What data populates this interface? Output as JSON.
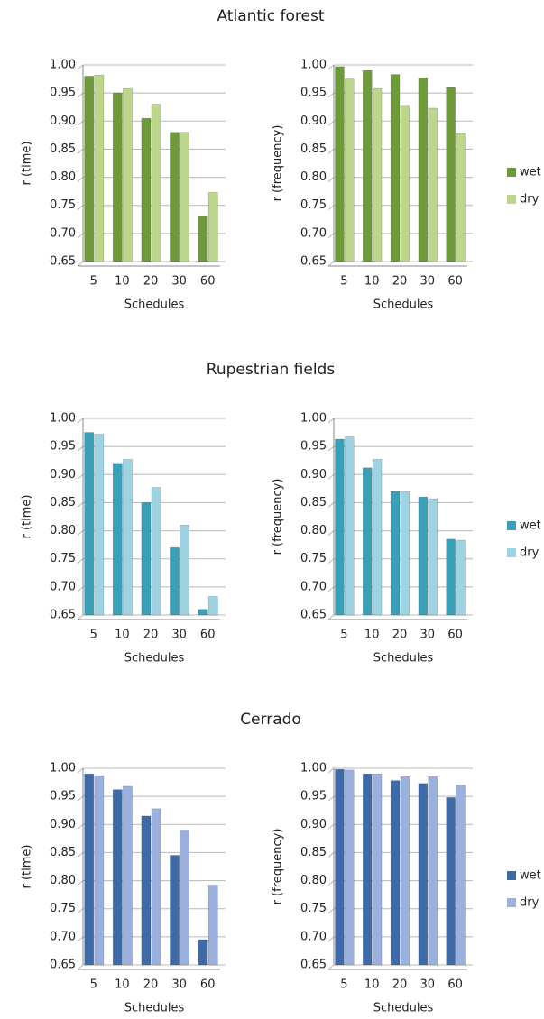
{
  "chart_data": [
    {
      "type": "bar",
      "title": "Atlantic forest",
      "ylabel": "r (time)",
      "xlabel": "Schedules",
      "categories": [
        "5",
        "10",
        "20",
        "30",
        "60"
      ],
      "series": [
        {
          "color": "#6f9a3a",
          "values": [
            0.98,
            0.95,
            0.905,
            0.88,
            0.73
          ]
        },
        {
          "color": "#bcd78c",
          "values": [
            0.982,
            0.958,
            0.93,
            0.88,
            0.773
          ]
        }
      ],
      "ylim": [
        0.65,
        1.0
      ],
      "grid": true,
      "yticks": [
        {
          "value": 0.65,
          "label": "0.65"
        },
        {
          "value": 0.7,
          "label": "0.70"
        },
        {
          "value": 0.75,
          "label": "0.75"
        },
        {
          "value": 0.8,
          "label": "0.80"
        },
        {
          "value": 0.85,
          "label": "0.85"
        },
        {
          "value": 0.9,
          "label": "0.90"
        },
        {
          "value": 0.95,
          "label": "0.95"
        },
        {
          "value": 1.0,
          "label": "1.00"
        }
      ]
    },
    {
      "type": "bar",
      "ylabel": "r (frequency)",
      "xlabel": "Schedules",
      "legend": "right",
      "categories": [
        "5",
        "10",
        "20",
        "30",
        "60"
      ],
      "series": [
        {
          "name": "wet",
          "color": "#6f9a3a",
          "values": [
            0.997,
            0.99,
            0.983,
            0.977,
            0.96
          ]
        },
        {
          "name": "dry",
          "color": "#bcd78c",
          "values": [
            0.975,
            0.958,
            0.928,
            0.923,
            0.878
          ]
        }
      ],
      "ylim": [
        0.65,
        1.0
      ],
      "grid": true,
      "yticks": [
        {
          "value": 0.65,
          "label": "0.65"
        },
        {
          "value": 0.7,
          "label": "0.70"
        },
        {
          "value": 0.75,
          "label": "0.75"
        },
        {
          "value": 0.8,
          "label": "0.80"
        },
        {
          "value": 0.85,
          "label": "0.85"
        },
        {
          "value": 0.9,
          "label": "0.90"
        },
        {
          "value": 0.95,
          "label": "0.95"
        },
        {
          "value": 1.0,
          "label": "1.00"
        }
      ]
    },
    {
      "type": "bar",
      "title": "Rupestrian fields",
      "ylabel": "r (time)",
      "xlabel": "Schedules",
      "categories": [
        "5",
        "10",
        "20",
        "30",
        "60"
      ],
      "series": [
        {
          "color": "#3aa0b8",
          "values": [
            0.975,
            0.92,
            0.85,
            0.77,
            0.66
          ]
        },
        {
          "color": "#9ed3e4",
          "values": [
            0.972,
            0.927,
            0.877,
            0.81,
            0.683
          ]
        }
      ],
      "ylim": [
        0.65,
        1.0
      ],
      "grid": true,
      "yticks": [
        {
          "value": 0.65,
          "label": "0.65"
        },
        {
          "value": 0.7,
          "label": "0.70"
        },
        {
          "value": 0.75,
          "label": "0.75"
        },
        {
          "value": 0.8,
          "label": "0.80"
        },
        {
          "value": 0.85,
          "label": "0.85"
        },
        {
          "value": 0.9,
          "label": "0.90"
        },
        {
          "value": 0.95,
          "label": "0.95"
        },
        {
          "value": 1.0,
          "label": "1.00"
        }
      ]
    },
    {
      "type": "bar",
      "ylabel": "r (frequency)",
      "xlabel": "Schedules",
      "legend": "right",
      "categories": [
        "5",
        "10",
        "20",
        "30",
        "60"
      ],
      "series": [
        {
          "name": "wet",
          "color": "#3aa0b8",
          "values": [
            0.963,
            0.912,
            0.87,
            0.86,
            0.785
          ]
        },
        {
          "name": "dry",
          "color": "#9ed3e4",
          "values": [
            0.967,
            0.927,
            0.87,
            0.857,
            0.783
          ]
        }
      ],
      "ylim": [
        0.65,
        1.0
      ],
      "grid": true,
      "yticks": [
        {
          "value": 0.65,
          "label": "0.65"
        },
        {
          "value": 0.7,
          "label": "0.70"
        },
        {
          "value": 0.75,
          "label": "0.75"
        },
        {
          "value": 0.8,
          "label": "0.80"
        },
        {
          "value": 0.85,
          "label": "0.85"
        },
        {
          "value": 0.9,
          "label": "0.90"
        },
        {
          "value": 0.95,
          "label": "0.95"
        },
        {
          "value": 1.0,
          "label": "1.00"
        }
      ]
    },
    {
      "type": "bar",
      "title": "Cerrado",
      "ylabel": "r (time)",
      "xlabel": "Schedules",
      "categories": [
        "5",
        "10",
        "20",
        "30",
        "60"
      ],
      "series": [
        {
          "color": "#3f6aa8",
          "values": [
            0.99,
            0.962,
            0.915,
            0.845,
            0.695
          ]
        },
        {
          "color": "#9bb1dd",
          "values": [
            0.987,
            0.968,
            0.928,
            0.89,
            0.792
          ]
        }
      ],
      "ylim": [
        0.65,
        1.0
      ],
      "grid": true,
      "yticks": [
        {
          "value": 0.65,
          "label": "0.65"
        },
        {
          "value": 0.7,
          "label": "0.70"
        },
        {
          "value": 0.75,
          "label": "0.75"
        },
        {
          "value": 0.8,
          "label": "0.80"
        },
        {
          "value": 0.85,
          "label": "0.85"
        },
        {
          "value": 0.9,
          "label": "0.90"
        },
        {
          "value": 0.95,
          "label": "0.95"
        },
        {
          "value": 1.0,
          "label": "1.00"
        }
      ]
    },
    {
      "type": "bar",
      "ylabel": "r (frequency)",
      "xlabel": "Schedules",
      "legend": "right",
      "categories": [
        "5",
        "10",
        "20",
        "30",
        "60"
      ],
      "series": [
        {
          "name": "wet",
          "color": "#3f6aa8",
          "values": [
            0.998,
            0.99,
            0.978,
            0.973,
            0.948
          ]
        },
        {
          "name": "dry",
          "color": "#9bb1dd",
          "values": [
            0.997,
            0.99,
            0.985,
            0.985,
            0.97
          ]
        }
      ],
      "ylim": [
        0.65,
        1.0
      ],
      "grid": true,
      "yticks": [
        {
          "value": 0.65,
          "label": "0.65"
        },
        {
          "value": 0.7,
          "label": "0.70"
        },
        {
          "value": 0.75,
          "label": "0.75"
        },
        {
          "value": 0.8,
          "label": "0.80"
        },
        {
          "value": 0.85,
          "label": "0.85"
        },
        {
          "value": 0.9,
          "label": "0.90"
        },
        {
          "value": 0.95,
          "label": "0.95"
        },
        {
          "value": 1.0,
          "label": "1.00"
        }
      ]
    }
  ]
}
